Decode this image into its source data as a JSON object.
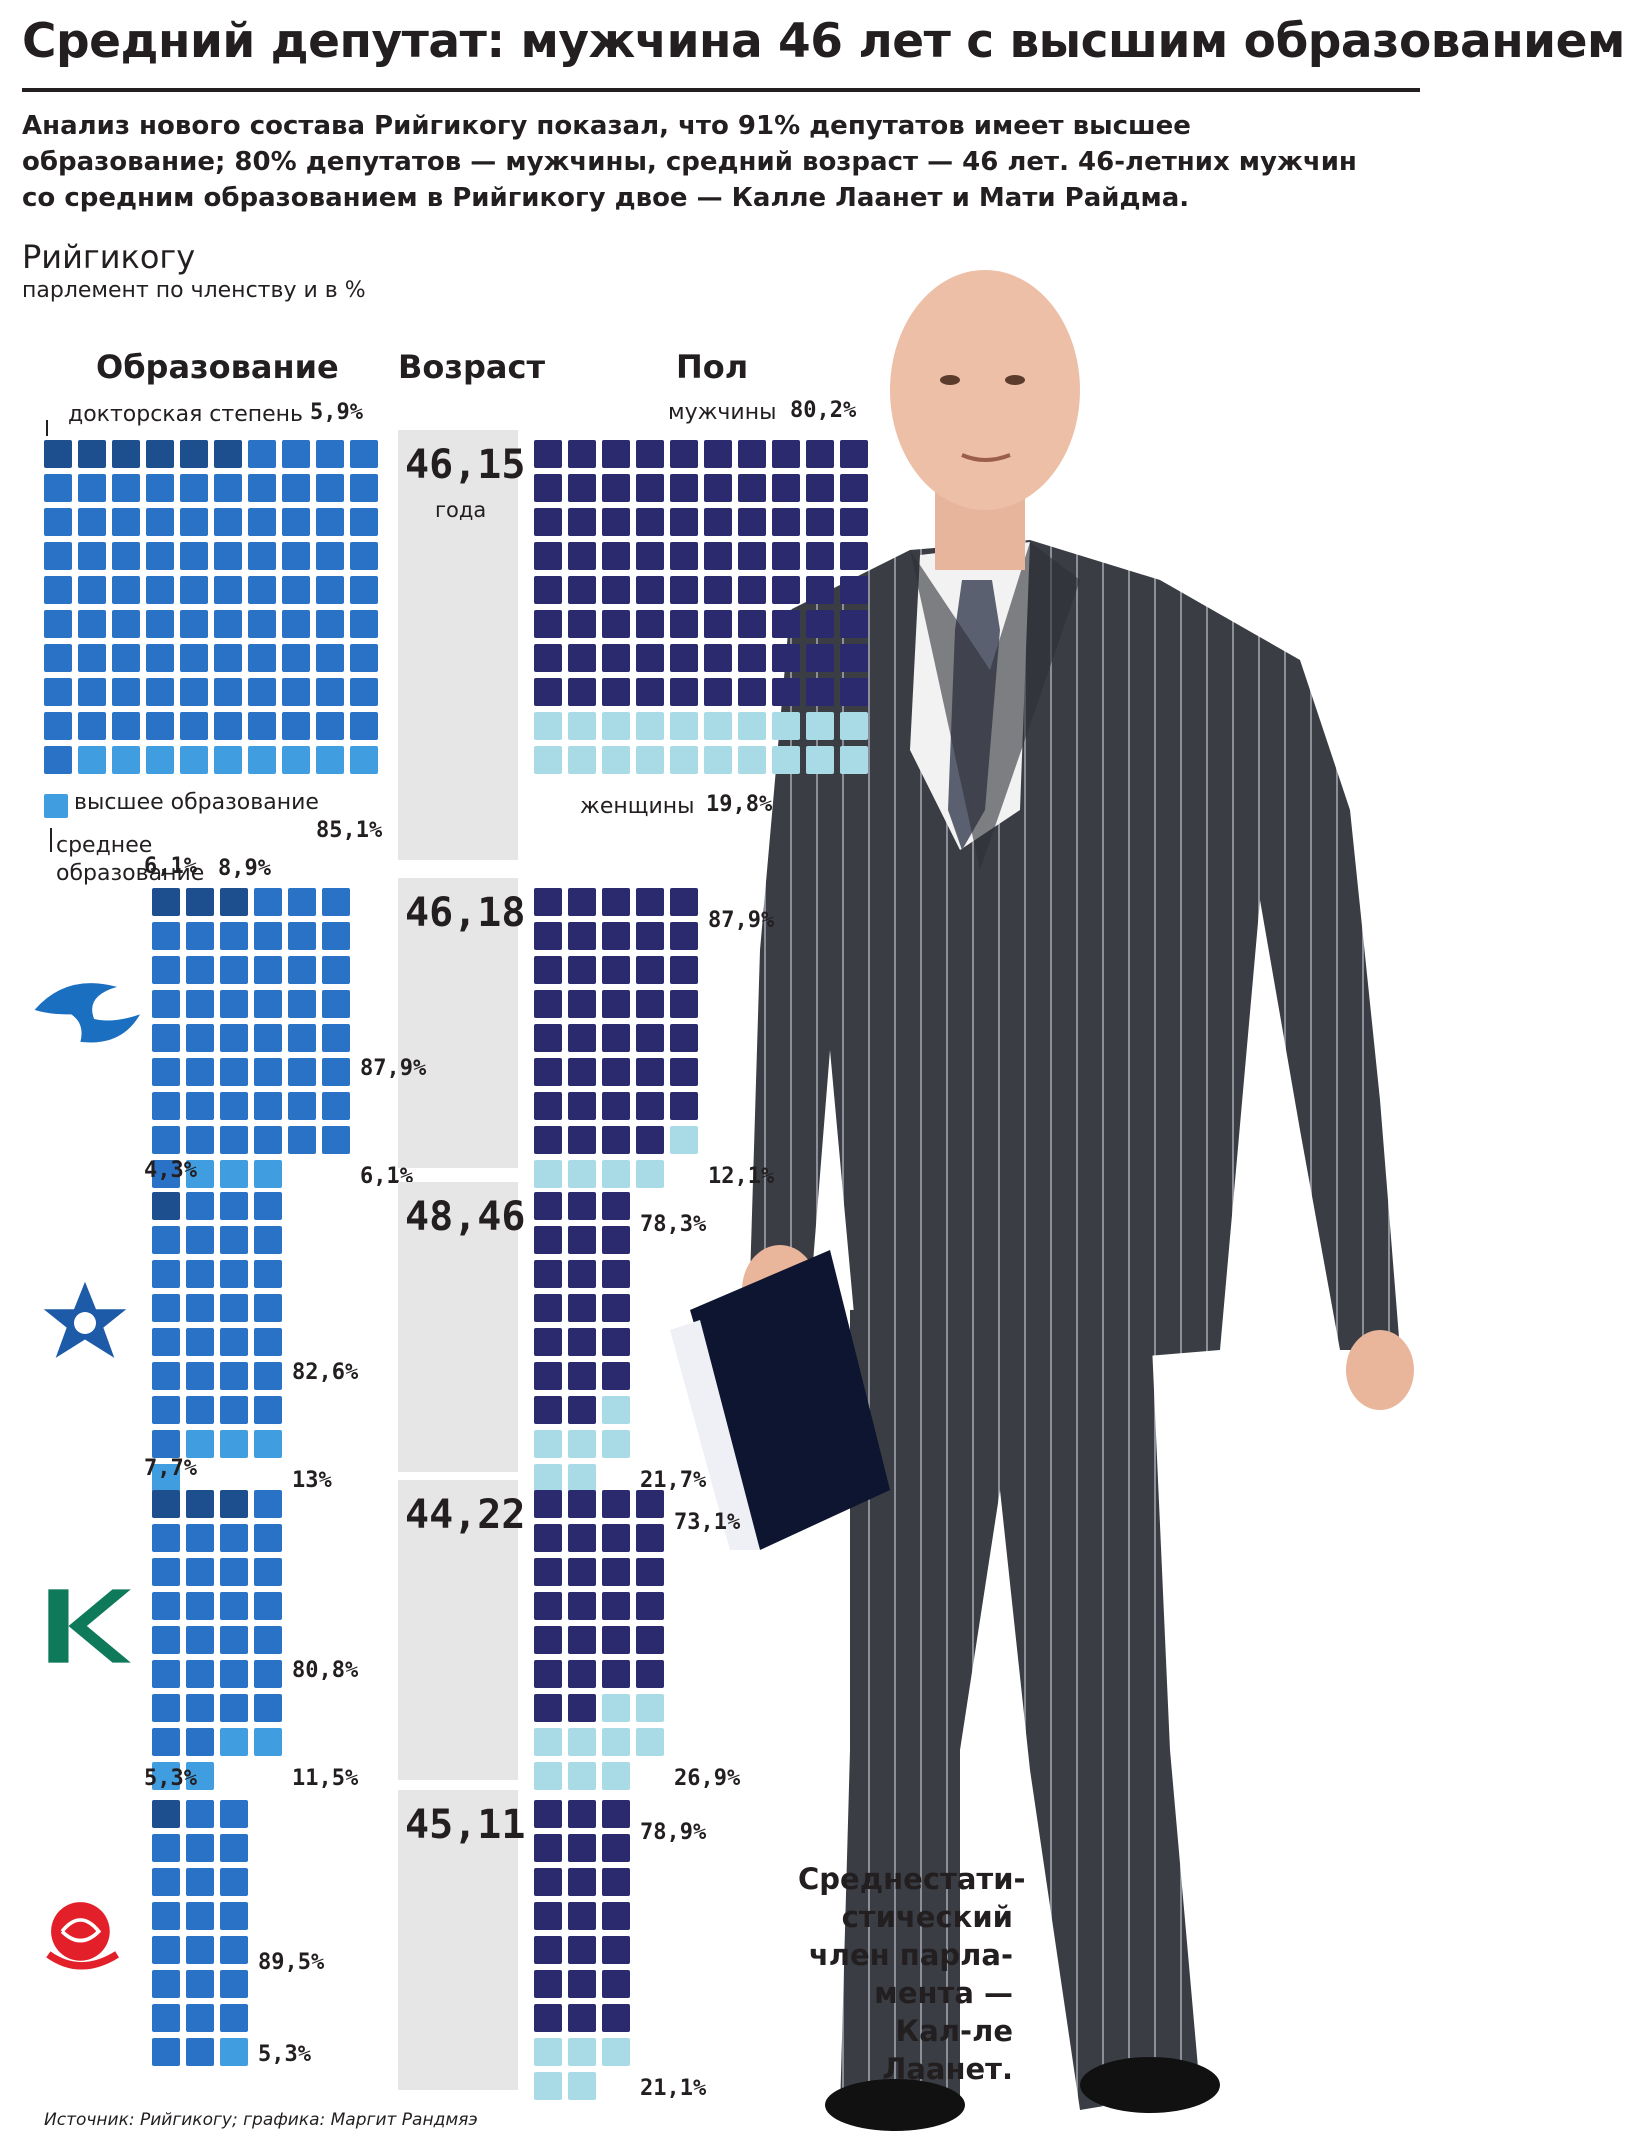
{
  "title": "Средний депутат: мужчина 46 лет с высшим образованием",
  "lead": "Анализ нового состава Рийгикогу показал, что 91% депутатов имеет высшее образование; 80% депутатов — мужчины, средний возраст — 46 лет. 46-летних мужчин со средним образованием в Рийгикогу двое — Калле Лаанет и Мати Райдма.",
  "section": {
    "title": "Рийгикогу",
    "subtitle": "парлемент по членству и в %"
  },
  "columns": {
    "education": "Образование",
    "age": "Возраст",
    "gender": "Пол"
  },
  "legend": {
    "doctorate": "докторская степень",
    "higher": "высшее образование",
    "secondary": "среднее образование",
    "men": "мужчины",
    "women": "женщины",
    "age_unit": "года"
  },
  "colors": {
    "doctorate": "#1d4f8f",
    "higher": "#2a72c6",
    "secondary": "#3f9de0",
    "men": "#2b2a6e",
    "women": "#a8dbe6",
    "age_panel": "#e6e6e6",
    "reform_logo": "#1a6fc0",
    "irl_logo": "#1d5aa8",
    "centre_logo": "#0f7a5a",
    "sde_logo": "#e3202a"
  },
  "chart_data": [
    {
      "type": "waffle",
      "group": "Рийгикогу",
      "icon": "parliament-total",
      "age": "46,15",
      "education": [
        {
          "name": "докторская степень",
          "value": 5.9,
          "label": "5,9%"
        },
        {
          "name": "высшее образование",
          "value": 85.1,
          "label": "85,1%"
        },
        {
          "name": "среднее образование",
          "value": 8.9,
          "label": "8,9%"
        }
      ],
      "gender": [
        {
          "name": "мужчины",
          "value": 80.2,
          "label": "80,2%"
        },
        {
          "name": "женщины",
          "value": 19.8,
          "label": "19,8%"
        }
      ]
    },
    {
      "type": "waffle",
      "icon": "reform-party-squirrel-logo",
      "age": "46,18",
      "education": [
        {
          "name": "докторская степень",
          "value": 6.1,
          "label": "6,1%"
        },
        {
          "name": "высшее образование",
          "value": 87.9,
          "label": "87,9%"
        },
        {
          "name": "среднее образование",
          "value": 6.1,
          "label": "6,1%"
        }
      ],
      "gender": [
        {
          "name": "мужчины",
          "value": 87.9,
          "label": "87,9%"
        },
        {
          "name": "женщины",
          "value": 12.1,
          "label": "12,1%"
        }
      ]
    },
    {
      "type": "waffle",
      "icon": "irl-star-logo",
      "age": "48,46",
      "education": [
        {
          "name": "докторская степень",
          "value": 4.3,
          "label": "4,3%"
        },
        {
          "name": "высшее образование",
          "value": 82.6,
          "label": "82,6%"
        },
        {
          "name": "среднее образование",
          "value": 13,
          "label": "13%"
        }
      ],
      "gender": [
        {
          "name": "мужчины",
          "value": 78.3,
          "label": "78,3%"
        },
        {
          "name": "женщины",
          "value": 21.7,
          "label": "21,7%"
        }
      ]
    },
    {
      "type": "waffle",
      "icon": "centre-party-k-logo",
      "age": "44,22",
      "education": [
        {
          "name": "докторская степень",
          "value": 7.7,
          "label": "7,7%"
        },
        {
          "name": "высшее образование",
          "value": 80.8,
          "label": "80,8%"
        },
        {
          "name": "среднее образование",
          "value": 11.5,
          "label": "11,5%"
        }
      ],
      "gender": [
        {
          "name": "мужчины",
          "value": 73.1,
          "label": "73,1%"
        },
        {
          "name": "женщины",
          "value": 26.9,
          "label": "26,9%"
        }
      ]
    },
    {
      "type": "waffle",
      "icon": "social-democrats-rose-logo",
      "age": "45,11",
      "education": [
        {
          "name": "докторская степень",
          "value": 5.3,
          "label": "5,3%"
        },
        {
          "name": "высшее образование",
          "value": 89.5,
          "label": "89,5%"
        },
        {
          "name": "среднее образование",
          "value": 5.3,
          "label": "5,3%"
        }
      ],
      "gender": [
        {
          "name": "мужчины",
          "value": 78.9,
          "label": "78,9%"
        },
        {
          "name": "женщины",
          "value": 21.1,
          "label": "21,1%"
        }
      ]
    }
  ],
  "caption": "Среднестати-стический член парла-мента — Кал-ле Лаанет.",
  "source": "Источник: Рийгикогу; графика: Маргит Рандмяэ"
}
